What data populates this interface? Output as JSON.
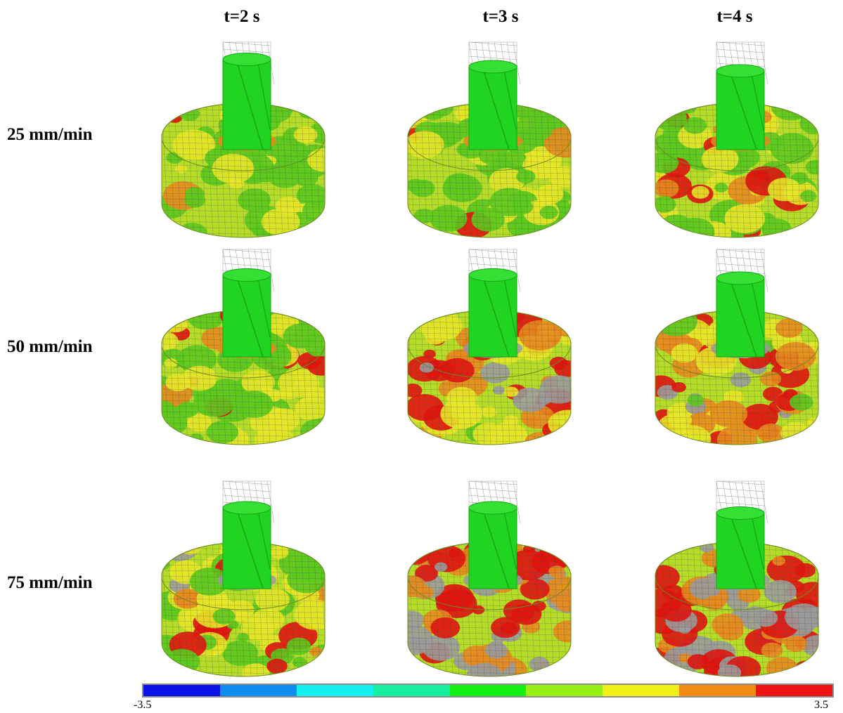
{
  "column_labels": [
    "t=2 s",
    "t=3 s",
    "t=4 s"
  ],
  "row_labels": [
    "25 mm/min",
    "50 mm/min",
    "75 mm/min"
  ],
  "colorbar": {
    "min_label": "-3.5",
    "max_label": "3.5",
    "colors": [
      "#0a14e6",
      "#0f8cf0",
      "#12f0f0",
      "#14f0a0",
      "#14f014",
      "#96f014",
      "#f0f014",
      "#f08c14",
      "#f01414"
    ]
  },
  "palette": {
    "tool_green": "#22d422",
    "tool_green_dark": "#15a515",
    "work_green": "#5cc81e",
    "work_yellowgreen": "#b4dc28",
    "work_yellow": "#e6e628",
    "work_orange": "#e68a1e",
    "work_red": "#e0140f",
    "work_gray": "#9a9a9a",
    "mesh_line": "#444444"
  },
  "panels": [
    [
      {
        "hot": 0.05,
        "gray": 0.0,
        "plunge": 0.15
      },
      {
        "hot": 0.05,
        "gray": 0.0,
        "plunge": 0.5
      },
      {
        "hot": 0.25,
        "gray": 0.0,
        "plunge": 0.7
      }
    ],
    [
      {
        "hot": 0.15,
        "gray": 0.0,
        "plunge": 0.55
      },
      {
        "hot": 0.55,
        "gray": 0.15,
        "plunge": 0.55
      },
      {
        "hot": 0.55,
        "gray": 0.15,
        "plunge": 0.7
      }
    ],
    [
      {
        "hot": 0.15,
        "gray": 0.02,
        "plunge": 0.6
      },
      {
        "hot": 0.7,
        "gray": 0.3,
        "plunge": 0.6
      },
      {
        "hot": 0.8,
        "gray": 0.4,
        "plunge": 0.85
      }
    ]
  ]
}
